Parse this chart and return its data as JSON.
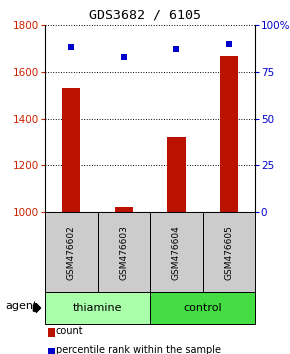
{
  "title": "GDS3682 / 6105",
  "samples": [
    "GSM476602",
    "GSM476603",
    "GSM476604",
    "GSM476605"
  ],
  "counts": [
    1530,
    1022,
    1320,
    1668
  ],
  "percentiles": [
    88,
    83,
    87,
    90
  ],
  "ylim_left": [
    1000,
    1800
  ],
  "ylim_right": [
    0,
    100
  ],
  "yticks_left": [
    1000,
    1200,
    1400,
    1600,
    1800
  ],
  "yticks_right": [
    0,
    25,
    50,
    75,
    100
  ],
  "yticklabels_right": [
    "0",
    "25",
    "50",
    "75",
    "100%"
  ],
  "groups": [
    {
      "label": "thiamine",
      "indices": [
        0,
        1
      ],
      "color": "#aaffaa"
    },
    {
      "label": "control",
      "indices": [
        2,
        3
      ],
      "color": "#44dd44"
    }
  ],
  "bar_color": "#bb1100",
  "dot_color": "#0000cc",
  "bar_width": 0.35,
  "sample_box_color": "#cccccc",
  "agent_label": "agent",
  "legend_items": [
    {
      "color": "#bb1100",
      "label": "count"
    },
    {
      "color": "#0000cc",
      "label": "percentile rank within the sample"
    }
  ],
  "left_axis_color": "#cc2200",
  "right_axis_color": "#0000cc",
  "background_color": "#ffffff"
}
